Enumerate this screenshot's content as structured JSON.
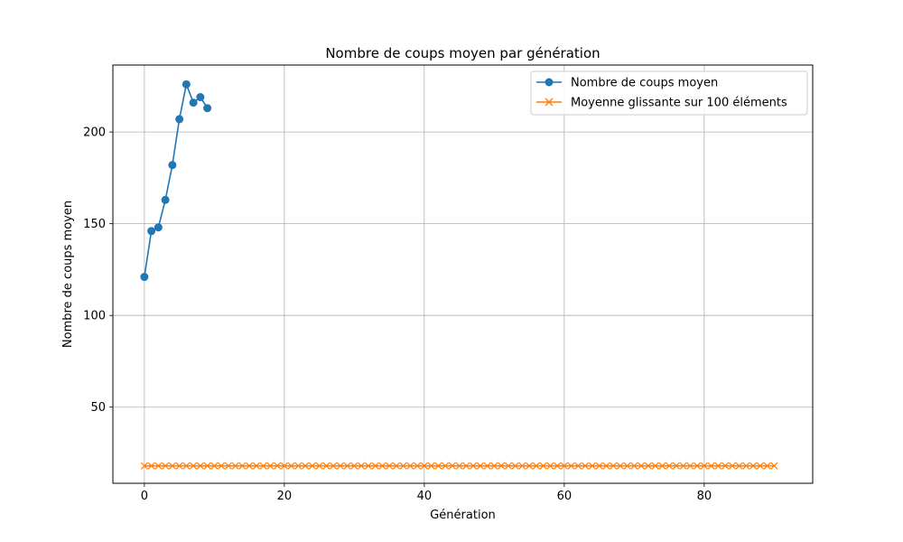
{
  "chart_data": {
    "type": "line",
    "title": "Nombre de coups moyen par génération",
    "xlabel": "Génération",
    "ylabel": "Nombre de coups moyen",
    "xlim": [
      -4.5,
      95.5
    ],
    "ylim": [
      8.5,
      236.5
    ],
    "xticks": [
      0,
      20,
      40,
      60,
      80
    ],
    "yticks": [
      50,
      100,
      150,
      200
    ],
    "grid": true,
    "legend_position": "top-right",
    "series": [
      {
        "name": "Nombre de coups moyen",
        "color": "#1f77b4",
        "marker": "circle",
        "x": [
          0,
          1,
          2,
          3,
          4,
          5,
          6,
          7,
          8,
          9
        ],
        "y": [
          121,
          146,
          148,
          163,
          182,
          207,
          226,
          216,
          219,
          213
        ]
      },
      {
        "name": "Moyenne glissante sur 100 éléments",
        "color": "#ff7f0e",
        "marker": "x",
        "x_start": 0,
        "x_end": 90,
        "y_constant": 18
      }
    ]
  }
}
